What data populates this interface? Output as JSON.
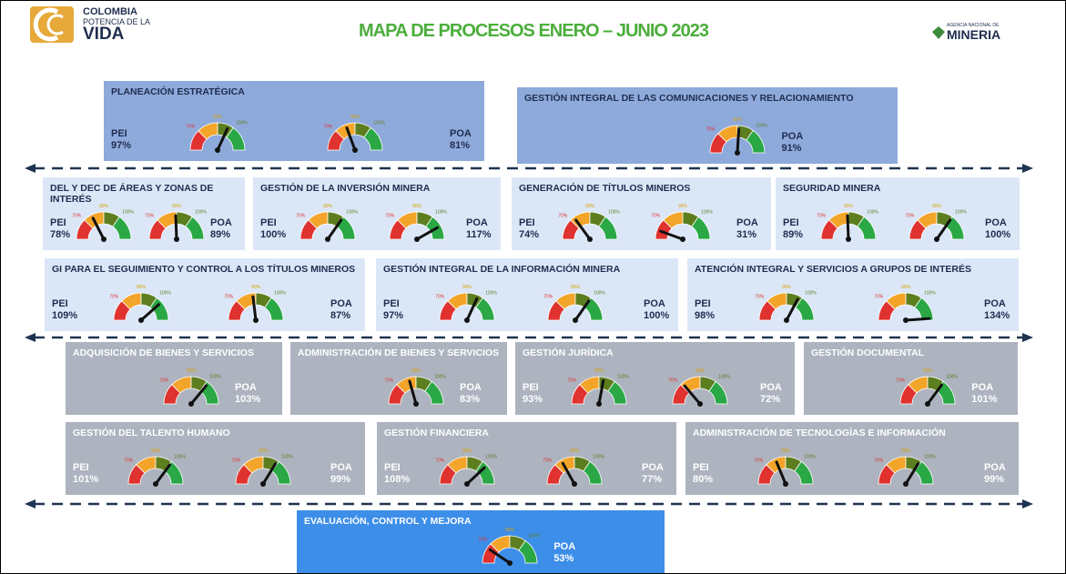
{
  "header": {
    "logo_line1": "COLOMBIA",
    "logo_line2": "POTENCIA DE LA",
    "logo_line3": "VIDA",
    "title": "MAPA DE PROCESOS ENERO – JUNIO 2023",
    "agency_small": "AGENCIA NACIONAL DE",
    "agency_big": "MINERIA"
  },
  "gauge_scale": [
    "70%",
    "90%",
    "100%"
  ],
  "processes": [
    {
      "title": "PLANEACIÓN ESTRATÉGICA",
      "style": "strategic",
      "gauges": [
        {
          "label": "PEI",
          "value": 97,
          "value_label": "97%"
        },
        {
          "label": "POA",
          "value": 81,
          "value_label": "81%"
        }
      ]
    },
    {
      "title": "GESTIÓN INTEGRAL DE LAS COMUNICACIONES Y RELACIONAMIENTO",
      "style": "strategic",
      "gauges": [
        {
          "label": "POA",
          "value": 91,
          "value_label": "91%"
        }
      ]
    },
    {
      "title": "DEL Y DEC DE ÁREAS Y ZONAS DE INTERÉS",
      "style": "mission",
      "gauges": [
        {
          "label": "PEI",
          "value": 78,
          "value_label": "78%"
        },
        {
          "label": "POA",
          "value": 89,
          "value_label": "89%"
        }
      ]
    },
    {
      "title": "GESTIÓN DE LA INVERSIÓN MINERA",
      "style": "mission",
      "gauges": [
        {
          "label": "PEI",
          "value": 100,
          "value_label": "100%"
        },
        {
          "label": "POA",
          "value": 117,
          "value_label": "117%"
        }
      ]
    },
    {
      "title": "GENERACIÓN DE TÍTULOS MINEROS",
      "style": "mission",
      "gauges": [
        {
          "label": "PEI",
          "value": 74,
          "value_label": "74%"
        },
        {
          "label": "POA",
          "value": 31,
          "value_label": "31%"
        }
      ]
    },
    {
      "title": "SEGURIDAD MINERA",
      "style": "mission",
      "gauges": [
        {
          "label": "PEI",
          "value": 89,
          "value_label": "89%"
        },
        {
          "label": "POA",
          "value": 100,
          "value_label": "100%"
        }
      ]
    },
    {
      "title": "GI PARA EL SEGUIMIENTO Y CONTROL A LOS TÍTULOS MINEROS",
      "style": "mission",
      "gauges": [
        {
          "label": "PEI",
          "value": 109,
          "value_label": "109%"
        },
        {
          "label": "POA",
          "value": 87,
          "value_label": "87%"
        }
      ]
    },
    {
      "title": "GESTIÓN INTEGRAL DE LA INFORMACIÓN MINERA",
      "style": "mission",
      "gauges": [
        {
          "label": "PEI",
          "value": 97,
          "value_label": "97%"
        },
        {
          "label": "POA",
          "value": 100,
          "value_label": "100%"
        }
      ]
    },
    {
      "title": "ATENCIÓN INTEGRAL Y SERVICIOS A GRUPOS DE INTERÉS",
      "style": "mission",
      "gauges": [
        {
          "label": "PEI",
          "value": 98,
          "value_label": "98%"
        },
        {
          "label": "POA",
          "value": 134,
          "value_label": "134%"
        }
      ]
    },
    {
      "title": "ADQUISICIÓN DE BIENES Y SERVICIOS",
      "style": "support",
      "gauges": [
        {
          "label": "POA",
          "value": 103,
          "value_label": "103%"
        }
      ]
    },
    {
      "title": "ADMINISTRACIÓN DE BIENES Y SERVICIOS",
      "style": "support",
      "gauges": [
        {
          "label": "POA",
          "value": 83,
          "value_label": "83%"
        }
      ]
    },
    {
      "title": "GESTIÓN JURÍDICA",
      "style": "support",
      "gauges": [
        {
          "label": "PEI",
          "value": 93,
          "value_label": "93%"
        },
        {
          "label": "POA",
          "value": 72,
          "value_label": "72%"
        }
      ]
    },
    {
      "title": "GESTIÓN DOCUMENTAL",
      "style": "support",
      "gauges": [
        {
          "label": "POA",
          "value": 101,
          "value_label": "101%"
        }
      ]
    },
    {
      "title": "GESTIÓN DEL TALENTO HUMANO",
      "style": "support",
      "gauges": [
        {
          "label": "PEI",
          "value": 101,
          "value_label": "101%"
        },
        {
          "label": "POA",
          "value": 99,
          "value_label": "99%"
        }
      ]
    },
    {
      "title": "GESTIÓN FINANCIERA",
      "style": "support",
      "gauges": [
        {
          "label": "PEI",
          "value": 108,
          "value_label": "108%"
        },
        {
          "label": "POA",
          "value": 77,
          "value_label": "77%"
        }
      ]
    },
    {
      "title": "ADMINISTRACIÓN DE TECNOLOGÍAS E INFORMACIÓN",
      "style": "support",
      "gauges": [
        {
          "label": "PEI",
          "value": 80,
          "value_label": "80%"
        },
        {
          "label": "POA",
          "value": 99,
          "value_label": "99%"
        }
      ]
    },
    {
      "title": "EVALUACIÓN, CONTROL Y MEJORA",
      "style": "evaluation",
      "gauges": [
        {
          "label": "POA",
          "value": 53,
          "value_label": "53%"
        }
      ]
    }
  ]
}
